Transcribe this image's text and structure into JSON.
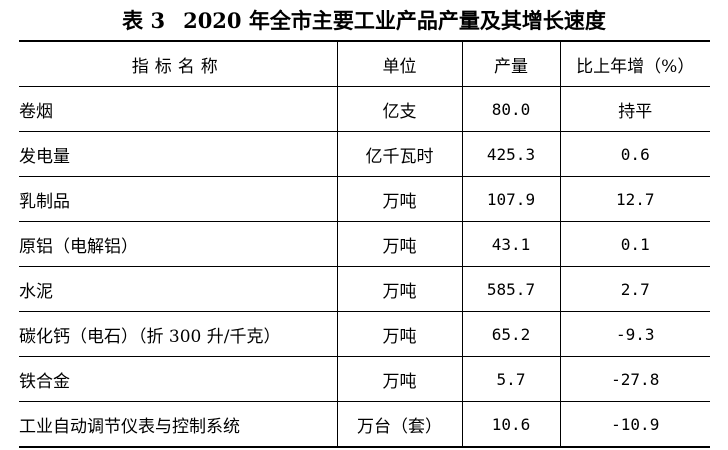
{
  "title": {
    "table_no": "表 3",
    "text": "2020 年全市主要工业产品产量及其增长速度"
  },
  "table": {
    "headers": {
      "name": "指标名称",
      "unit": "单位",
      "output": "产量",
      "growth": "比上年增（%）"
    },
    "rows": [
      {
        "name": "卷烟",
        "unit": "亿支",
        "output": "80.0",
        "growth": "持平"
      },
      {
        "name": "发电量",
        "unit": "亿千瓦时",
        "output": "425.3",
        "growth": "0.6"
      },
      {
        "name": "乳制品",
        "unit": "万吨",
        "output": "107.9",
        "growth": "12.7"
      },
      {
        "name": "原铝（电解铝）",
        "unit": "万吨",
        "output": "43.1",
        "growth": "0.1"
      },
      {
        "name": "水泥",
        "unit": "万吨",
        "output": "585.7",
        "growth": "2.7"
      },
      {
        "name": "碳化钙（电石）（折 300 升/千克）",
        "unit": "万吨",
        "output": "65.2",
        "growth": "-9.3"
      },
      {
        "name": "铁合金",
        "unit": "万吨",
        "output": "5.7",
        "growth": "-27.8"
      },
      {
        "name": "工业自动调节仪表与控制系统",
        "unit": "万台（套）",
        "output": "10.6",
        "growth": "-10.9"
      }
    ]
  }
}
